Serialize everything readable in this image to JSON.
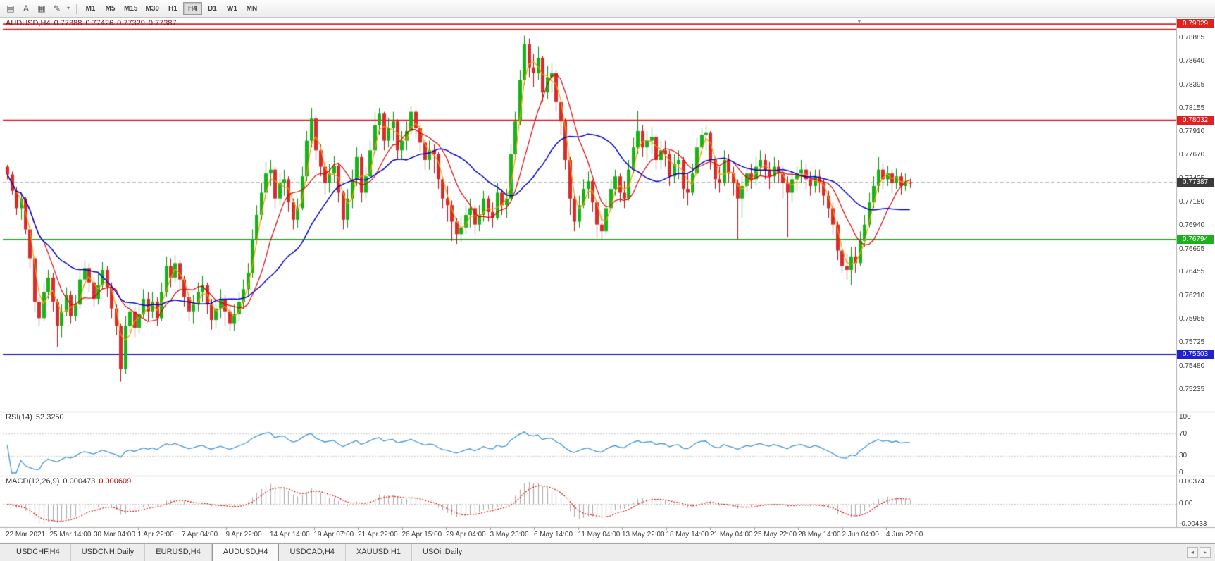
{
  "toolbar": {
    "icons": [
      {
        "name": "chart-window-icon",
        "glyph": "▤"
      },
      {
        "name": "cursor-tool-icon",
        "glyph": "A"
      },
      {
        "name": "grid-tool-icon",
        "glyph": "▦"
      },
      {
        "name": "draw-tool-icon",
        "glyph": "✎"
      },
      {
        "name": "draw-tool-caret-icon",
        "glyph": "▾"
      }
    ],
    "timeframes": [
      "M1",
      "M5",
      "M15",
      "M30",
      "H1",
      "H4",
      "D1",
      "W1",
      "MN"
    ],
    "active_timeframe": "H4"
  },
  "chart": {
    "title": "AUDUSD,H4",
    "open": "0.77388",
    "high": "0.77426",
    "low": "0.77329",
    "close": "0.77387",
    "current_price_label": "0.77387",
    "price_ticks": [
      "0.78885",
      "0.78640",
      "0.78395",
      "0.78155",
      "0.77910",
      "0.77670",
      "0.77425",
      "0.77180",
      "0.76940",
      "0.76695",
      "0.76455",
      "0.76210",
      "0.75965",
      "0.75725",
      "0.75480",
      "0.75235"
    ]
  },
  "rsi": {
    "label": "RSI(14)",
    "value": "52.3250",
    "ticks": [
      "100",
      "70",
      "30",
      "0"
    ]
  },
  "macd": {
    "label": "MACD(12,26,9)",
    "macd_value": "0.000473",
    "signal_value": "0.000609",
    "ticks": [
      "0.00374",
      "0.00",
      "-0.00433"
    ]
  },
  "time_axis": {
    "labels": [
      "22 Mar 2021",
      "25 Mar 14:00",
      "30 Mar 04:00",
      "1 Apr 22:00",
      "7 Apr 04:00",
      "9 Apr 22:00",
      "14 Apr 14:00",
      "19 Apr 07:00",
      "21 Apr 22:00",
      "26 Apr 15:00",
      "29 Apr 04:00",
      "3 May 23:00",
      "6 May 14:00",
      "11 May 04:00",
      "13 May 22:00",
      "18 May 14:00",
      "21 May 04:00",
      "25 May 22:00",
      "28 May 14:00",
      "2 Jun 04:00",
      "4 Jun 22:00"
    ]
  },
  "tabs": {
    "items": [
      {
        "label": "USDCHF,H4",
        "active": false
      },
      {
        "label": "USDCNH,Daily",
        "active": false
      },
      {
        "label": "EURUSD,H4",
        "active": false
      },
      {
        "label": "AUDUSD,H4",
        "active": true
      },
      {
        "label": "USDCAD,H4",
        "active": false
      },
      {
        "label": "XAUUSD,H1",
        "active": false
      },
      {
        "label": "USOil,Daily",
        "active": false
      }
    ],
    "scroll_left": "◂",
    "scroll_right": "▸"
  },
  "markers": {
    "shift_marker": "▼"
  },
  "colors": {
    "bull": "#14b514",
    "bull_edge": "#0a8f0a",
    "bear": "#d92b2b",
    "bear_edge": "#b11212",
    "ma_fast": "#ff9a00",
    "ma_mid": "#e00000",
    "ma_slow": "#0000c8",
    "rsi_line": "#3f95d8",
    "macd_hist": "#a8a8a8",
    "macd_signal": "#dd0000",
    "level_red": "#dd2222",
    "level_green": "#1fae1f",
    "level_blue": "#2121cc",
    "bid_box": "#3a3a3a"
  },
  "chart_data": {
    "type": "candlestick",
    "symbol": "AUDUSD",
    "timeframe": "H4",
    "ohlc_current": {
      "open": 0.77388,
      "high": 0.77426,
      "low": 0.77329,
      "close": 0.77387
    },
    "bid": 0.77387,
    "ylim": [
      0.7501,
      0.791
    ],
    "x_range": [
      "22 Mar 2021",
      "7 Jun 2021"
    ],
    "note": "downsampled H4 series; each candle entry is [close,high,low]; open = previous close",
    "first_open": 0.7755,
    "candles": [
      [
        0.7747,
        0.7757,
        0.7742
      ],
      [
        0.773,
        0.775,
        0.7726
      ],
      [
        0.7712,
        0.7734,
        0.7705
      ],
      [
        0.7722,
        0.7728,
        0.77
      ],
      [
        0.769,
        0.7724,
        0.7685
      ],
      [
        0.766,
        0.7694,
        0.765
      ],
      [
        0.7615,
        0.7662,
        0.7605
      ],
      [
        0.7598,
        0.762,
        0.759
      ],
      [
        0.7625,
        0.7635,
        0.7595
      ],
      [
        0.764,
        0.7648,
        0.7618
      ],
      [
        0.7615,
        0.7645,
        0.7605
      ],
      [
        0.759,
        0.7618,
        0.7568
      ],
      [
        0.7605,
        0.7612,
        0.7578
      ],
      [
        0.7622,
        0.763,
        0.76
      ],
      [
        0.76,
        0.7626,
        0.7592
      ],
      [
        0.7612,
        0.7622,
        0.7595
      ],
      [
        0.7638,
        0.7648,
        0.7608
      ],
      [
        0.765,
        0.7658,
        0.763
      ],
      [
        0.7635,
        0.7655,
        0.7625
      ],
      [
        0.7618,
        0.764,
        0.761
      ],
      [
        0.7632,
        0.7645,
        0.7612
      ],
      [
        0.7648,
        0.7656,
        0.7628
      ],
      [
        0.763,
        0.7652,
        0.762
      ],
      [
        0.7608,
        0.7635,
        0.7598
      ],
      [
        0.759,
        0.7612,
        0.758
      ],
      [
        0.7545,
        0.7592,
        0.7532
      ],
      [
        0.759,
        0.76,
        0.754
      ],
      [
        0.7605,
        0.7615,
        0.7582
      ],
      [
        0.7588,
        0.761,
        0.7578
      ],
      [
        0.7602,
        0.7612,
        0.7582
      ],
      [
        0.7618,
        0.7628,
        0.7598
      ],
      [
        0.7605,
        0.7625,
        0.7595
      ],
      [
        0.7615,
        0.7625,
        0.7598
      ],
      [
        0.7598,
        0.762,
        0.759
      ],
      [
        0.7625,
        0.7635,
        0.7595
      ],
      [
        0.7652,
        0.7662,
        0.762
      ],
      [
        0.764,
        0.766,
        0.763
      ],
      [
        0.7655,
        0.7663,
        0.7635
      ],
      [
        0.7638,
        0.7658,
        0.7628
      ],
      [
        0.762,
        0.7642,
        0.761
      ],
      [
        0.7605,
        0.7625,
        0.7595
      ],
      [
        0.7612,
        0.7622,
        0.7592
      ],
      [
        0.7625,
        0.7635,
        0.7605
      ],
      [
        0.7632,
        0.7642,
        0.7615
      ],
      [
        0.7612,
        0.7635,
        0.7602
      ],
      [
        0.7596,
        0.7618,
        0.7586
      ],
      [
        0.7608,
        0.7618,
        0.7588
      ],
      [
        0.7618,
        0.7628,
        0.7598
      ],
      [
        0.7605,
        0.7622,
        0.759
      ],
      [
        0.7592,
        0.761,
        0.7585
      ],
      [
        0.7602,
        0.7612,
        0.7585
      ],
      [
        0.7615,
        0.7625,
        0.7595
      ],
      [
        0.7628,
        0.7638,
        0.7608
      ],
      [
        0.7645,
        0.7655,
        0.7622
      ],
      [
        0.768,
        0.769,
        0.764
      ],
      [
        0.7705,
        0.7715,
        0.7675
      ],
      [
        0.7728,
        0.7738,
        0.77
      ],
      [
        0.7748,
        0.776,
        0.772
      ],
      [
        0.7752,
        0.7762,
        0.7735
      ],
      [
        0.7722,
        0.7755,
        0.7712
      ],
      [
        0.7738,
        0.7748,
        0.7715
      ],
      [
        0.7742,
        0.7752,
        0.7725
      ],
      [
        0.7718,
        0.7745,
        0.7708
      ],
      [
        0.77,
        0.7722,
        0.769
      ],
      [
        0.7712,
        0.7722,
        0.7692
      ],
      [
        0.7745,
        0.7755,
        0.771
      ],
      [
        0.7782,
        0.7792,
        0.774
      ],
      [
        0.7805,
        0.7816,
        0.7775
      ],
      [
        0.7772,
        0.7808,
        0.7762
      ],
      [
        0.7755,
        0.7778,
        0.7745
      ],
      [
        0.7738,
        0.776,
        0.7726
      ],
      [
        0.7748,
        0.7758,
        0.7728
      ],
      [
        0.7756,
        0.7766,
        0.7738
      ],
      [
        0.7728,
        0.7758,
        0.7718
      ],
      [
        0.77,
        0.773,
        0.769
      ],
      [
        0.7722,
        0.7732,
        0.7692
      ],
      [
        0.7742,
        0.7752,
        0.7712
      ],
      [
        0.7765,
        0.7775,
        0.7735
      ],
      [
        0.7728,
        0.7768,
        0.7718
      ],
      [
        0.7745,
        0.7755,
        0.7722
      ],
      [
        0.7772,
        0.7782,
        0.7742
      ],
      [
        0.7798,
        0.7812,
        0.7768
      ],
      [
        0.781,
        0.7816,
        0.7788
      ],
      [
        0.7782,
        0.7812,
        0.7772
      ],
      [
        0.7795,
        0.7806,
        0.7775
      ],
      [
        0.7802,
        0.7812,
        0.7782
      ],
      [
        0.7772,
        0.7804,
        0.7762
      ],
      [
        0.7782,
        0.7792,
        0.7762
      ],
      [
        0.7792,
        0.7802,
        0.7772
      ],
      [
        0.7812,
        0.7818,
        0.7788
      ],
      [
        0.7795,
        0.7815,
        0.7785
      ],
      [
        0.778,
        0.78,
        0.777
      ],
      [
        0.7762,
        0.7784,
        0.7752
      ],
      [
        0.7772,
        0.7782,
        0.7752
      ],
      [
        0.7768,
        0.7778,
        0.7748
      ],
      [
        0.7742,
        0.777,
        0.7732
      ],
      [
        0.7722,
        0.7744,
        0.7712
      ],
      [
        0.7715,
        0.7735,
        0.7698
      ],
      [
        0.7698,
        0.772,
        0.7678
      ],
      [
        0.7685,
        0.7702,
        0.7675
      ],
      [
        0.7692,
        0.7705,
        0.7676
      ],
      [
        0.7705,
        0.7715,
        0.7685
      ],
      [
        0.7712,
        0.7722,
        0.7692
      ],
      [
        0.7695,
        0.7715,
        0.7685
      ],
      [
        0.7705,
        0.7715,
        0.7688
      ],
      [
        0.7722,
        0.773,
        0.7698
      ],
      [
        0.7708,
        0.7725,
        0.7698
      ],
      [
        0.7702,
        0.7718,
        0.7692
      ],
      [
        0.7728,
        0.7738,
        0.77
      ],
      [
        0.7715,
        0.7732,
        0.7705
      ],
      [
        0.7722,
        0.7732,
        0.7702
      ],
      [
        0.7768,
        0.7778,
        0.772
      ],
      [
        0.7802,
        0.7812,
        0.7762
      ],
      [
        0.7845,
        0.7855,
        0.7798
      ],
      [
        0.7882,
        0.7891,
        0.784
      ],
      [
        0.7858,
        0.7888,
        0.7848
      ],
      [
        0.7852,
        0.7872,
        0.7838
      ],
      [
        0.7868,
        0.788,
        0.7845
      ],
      [
        0.7832,
        0.787,
        0.7822
      ],
      [
        0.7848,
        0.786,
        0.7825
      ],
      [
        0.7852,
        0.7862,
        0.7832
      ],
      [
        0.7822,
        0.7855,
        0.7812
      ],
      [
        0.7802,
        0.7825,
        0.7788
      ],
      [
        0.7762,
        0.7805,
        0.7752
      ],
      [
        0.7722,
        0.7765,
        0.7705
      ],
      [
        0.7698,
        0.7725,
        0.7688
      ],
      [
        0.7715,
        0.7725,
        0.7692
      ],
      [
        0.7732,
        0.7742,
        0.7712
      ],
      [
        0.774,
        0.775,
        0.7722
      ],
      [
        0.7718,
        0.7742,
        0.7708
      ],
      [
        0.7695,
        0.772,
        0.7682
      ],
      [
        0.7688,
        0.7705,
        0.768
      ],
      [
        0.7712,
        0.7722,
        0.7685
      ],
      [
        0.7732,
        0.7742,
        0.7708
      ],
      [
        0.7745,
        0.7752,
        0.7725
      ],
      [
        0.7728,
        0.7748,
        0.7718
      ],
      [
        0.7722,
        0.774,
        0.7712
      ],
      [
        0.7752,
        0.7762,
        0.772
      ],
      [
        0.7775,
        0.7785,
        0.7748
      ],
      [
        0.7792,
        0.7813,
        0.7768
      ],
      [
        0.7775,
        0.7798,
        0.7765
      ],
      [
        0.7782,
        0.7792,
        0.7762
      ],
      [
        0.7786,
        0.7796,
        0.7768
      ],
      [
        0.7762,
        0.7788,
        0.7752
      ],
      [
        0.7772,
        0.7782,
        0.7752
      ],
      [
        0.7768,
        0.7782,
        0.7755
      ],
      [
        0.7745,
        0.7772,
        0.7735
      ],
      [
        0.7758,
        0.7768,
        0.7738
      ],
      [
        0.7762,
        0.7772,
        0.7742
      ],
      [
        0.7732,
        0.7765,
        0.7722
      ],
      [
        0.7728,
        0.7748,
        0.7715
      ],
      [
        0.7748,
        0.7758,
        0.7725
      ],
      [
        0.7775,
        0.7785,
        0.7745
      ],
      [
        0.7788,
        0.7795,
        0.7768
      ],
      [
        0.779,
        0.7798,
        0.7772
      ],
      [
        0.7762,
        0.7792,
        0.7752
      ],
      [
        0.7742,
        0.7765,
        0.7732
      ],
      [
        0.7738,
        0.7755,
        0.7728
      ],
      [
        0.7762,
        0.7772,
        0.7735
      ],
      [
        0.7748,
        0.7768,
        0.7738
      ],
      [
        0.7738,
        0.7755,
        0.7725
      ],
      [
        0.7722,
        0.7742,
        0.768
      ],
      [
        0.7735,
        0.7745,
        0.7702
      ],
      [
        0.7748,
        0.7755,
        0.7728
      ],
      [
        0.7742,
        0.7758,
        0.7732
      ],
      [
        0.7755,
        0.7765,
        0.7735
      ],
      [
        0.7762,
        0.7772,
        0.7745
      ],
      [
        0.7752,
        0.7768,
        0.7742
      ],
      [
        0.7745,
        0.776,
        0.7732
      ],
      [
        0.7755,
        0.7765,
        0.7738
      ],
      [
        0.7748,
        0.7762,
        0.7738
      ],
      [
        0.7738,
        0.7755,
        0.7722
      ],
      [
        0.7728,
        0.7745,
        0.7682
      ],
      [
        0.7742,
        0.775,
        0.7718
      ],
      [
        0.7748,
        0.7756,
        0.773
      ],
      [
        0.7752,
        0.7762,
        0.7738
      ],
      [
        0.7742,
        0.7758,
        0.7732
      ],
      [
        0.7735,
        0.775,
        0.7725
      ],
      [
        0.7745,
        0.7752,
        0.7728
      ],
      [
        0.7738,
        0.7752,
        0.7728
      ],
      [
        0.7725,
        0.7742,
        0.7715
      ],
      [
        0.7712,
        0.773,
        0.7702
      ],
      [
        0.7695,
        0.7718,
        0.7685
      ],
      [
        0.7668,
        0.7698,
        0.7658
      ],
      [
        0.7652,
        0.7672,
        0.7645
      ],
      [
        0.7648,
        0.7665,
        0.7638
      ],
      [
        0.7662,
        0.7672,
        0.7632
      ],
      [
        0.7655,
        0.7672,
        0.7645
      ],
      [
        0.7678,
        0.7688,
        0.7652
      ],
      [
        0.7695,
        0.7705,
        0.7672
      ],
      [
        0.7718,
        0.7728,
        0.7692
      ],
      [
        0.7735,
        0.7745,
        0.7712
      ],
      [
        0.7752,
        0.7765,
        0.7728
      ],
      [
        0.7742,
        0.7758,
        0.7732
      ],
      [
        0.7748,
        0.7756,
        0.7735
      ],
      [
        0.7738,
        0.7752,
        0.7728
      ],
      [
        0.7745,
        0.7753,
        0.7732
      ],
      [
        0.7735,
        0.7749,
        0.7726
      ],
      [
        0.77388,
        0.7748,
        0.773
      ],
      [
        0.77387,
        0.77426,
        0.77329
      ]
    ],
    "moving_averages": [
      {
        "name": "fast",
        "color": "#ff9a00",
        "period": 3
      },
      {
        "name": "medium",
        "color": "#e00000",
        "period": 9
      },
      {
        "name": "slow",
        "color": "#0000c8",
        "period": 21
      }
    ],
    "levels": [
      {
        "price": 0.79029,
        "color": "#dd2222",
        "label": "0.79029"
      },
      {
        "price": 0.78975,
        "color": "#dd2222",
        "label": ""
      },
      {
        "price": 0.78032,
        "color": "#dd2222",
        "label": "0.78032"
      },
      {
        "price": 0.76794,
        "color": "#1fae1f",
        "label": "0.76794"
      },
      {
        "price": 0.75603,
        "color": "#2121cc",
        "label": "0.75603"
      }
    ],
    "indicators": {
      "rsi": {
        "label": "RSI(14)",
        "period": 14,
        "value": 52.325,
        "levels": [
          70,
          30
        ],
        "scale": [
          0,
          100
        ]
      },
      "macd": {
        "label": "MACD(12,26,9)",
        "fast": 12,
        "slow": 26,
        "signal": 9,
        "macd_value": 0.000473,
        "signal_value": 0.000609,
        "scale_ticks": [
          0.00374,
          0.0,
          -0.00433
        ]
      }
    }
  }
}
